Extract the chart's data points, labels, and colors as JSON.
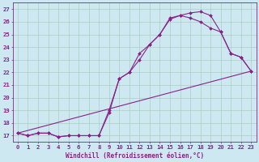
{
  "xlabel": "Windchill (Refroidissement éolien,°C)",
  "background_color": "#cde8f0",
  "grid_color": "#a8cfc0",
  "line_color": "#882288",
  "xlim": [
    -0.5,
    23.5
  ],
  "ylim": [
    16.5,
    27.5
  ],
  "xticks": [
    0,
    1,
    2,
    3,
    4,
    5,
    6,
    7,
    8,
    9,
    10,
    11,
    12,
    13,
    14,
    15,
    16,
    17,
    18,
    19,
    20,
    21,
    22,
    23
  ],
  "yticks": [
    17,
    18,
    19,
    20,
    21,
    22,
    23,
    24,
    25,
    26,
    27
  ],
  "line1_x": [
    0,
    1,
    2,
    3,
    4,
    5,
    6,
    7,
    8,
    9,
    10,
    11,
    12,
    13,
    14,
    15,
    16,
    17,
    18,
    19,
    20,
    21,
    22,
    23
  ],
  "line1_y": [
    17.2,
    17.0,
    17.2,
    17.2,
    16.9,
    17.0,
    17.0,
    17.0,
    17.0,
    19.0,
    21.5,
    22.0,
    23.5,
    24.2,
    25.0,
    26.2,
    26.5,
    26.7,
    26.8,
    26.5,
    25.2,
    23.5,
    23.2,
    22.1
  ],
  "line2_x": [
    0,
    1,
    2,
    3,
    4,
    5,
    6,
    7,
    8,
    9,
    10,
    11,
    12,
    13,
    14,
    15,
    16,
    17,
    18,
    19,
    20,
    21,
    22,
    23
  ],
  "line2_y": [
    17.2,
    17.0,
    17.2,
    17.2,
    16.9,
    17.0,
    17.0,
    17.0,
    17.0,
    18.8,
    21.5,
    22.0,
    23.0,
    24.2,
    25.0,
    26.3,
    26.5,
    26.3,
    26.0,
    25.5,
    25.2,
    23.5,
    23.2,
    22.1
  ],
  "line3_x": [
    0,
    23
  ],
  "line3_y": [
    17.2,
    22.1
  ],
  "marker": "D",
  "markersize": 2.0,
  "linewidth": 0.8
}
